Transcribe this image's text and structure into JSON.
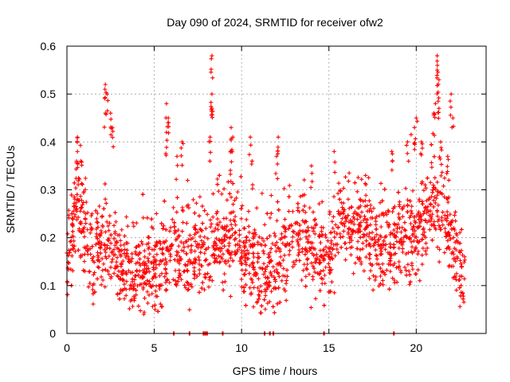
{
  "chart_data": {
    "type": "scatter",
    "title": "Day 090 of 2024, SRMTID for receiver ofw2",
    "xlabel": "GPS time / hours",
    "ylabel": "SRMTID / TECUs",
    "xlim": [
      0,
      24
    ],
    "ylim": [
      0,
      0.6
    ],
    "xticks": [
      0,
      5,
      10,
      15,
      20
    ],
    "xtick_labels": [
      "0",
      "5",
      "10",
      "15",
      "20"
    ],
    "yticks": [
      0,
      0.1,
      0.2,
      0.3,
      0.4,
      0.5,
      0.6
    ],
    "ytick_labels": [
      "0",
      "0.1",
      "0.2",
      "0.3",
      "0.4",
      "0.5",
      "0.6"
    ],
    "grid": true,
    "marker": "+",
    "series": [
      {
        "name": "ofw2",
        "color": "#ff0000",
        "trend": [
          [
            0.0,
            0.17
          ],
          [
            0.3,
            0.2
          ],
          [
            0.6,
            0.28
          ],
          [
            0.9,
            0.22
          ],
          [
            1.2,
            0.18
          ],
          [
            1.6,
            0.17
          ],
          [
            2.0,
            0.17
          ],
          [
            2.3,
            0.2
          ],
          [
            2.6,
            0.17
          ],
          [
            3.0,
            0.14
          ],
          [
            3.5,
            0.14
          ],
          [
            4.0,
            0.13
          ],
          [
            4.5,
            0.13
          ],
          [
            5.0,
            0.13
          ],
          [
            5.5,
            0.15
          ],
          [
            6.0,
            0.19
          ],
          [
            6.5,
            0.17
          ],
          [
            7.0,
            0.16
          ],
          [
            7.5,
            0.17
          ],
          [
            8.0,
            0.16
          ],
          [
            8.5,
            0.22
          ],
          [
            9.0,
            0.19
          ],
          [
            9.5,
            0.23
          ],
          [
            10.0,
            0.16
          ],
          [
            10.5,
            0.16
          ],
          [
            11.0,
            0.12
          ],
          [
            11.5,
            0.13
          ],
          [
            12.0,
            0.15
          ],
          [
            12.5,
            0.18
          ],
          [
            13.0,
            0.2
          ],
          [
            13.5,
            0.2
          ],
          [
            14.0,
            0.19
          ],
          [
            14.5,
            0.15
          ],
          [
            15.0,
            0.16
          ],
          [
            15.5,
            0.24
          ],
          [
            16.0,
            0.23
          ],
          [
            16.5,
            0.22
          ],
          [
            17.0,
            0.23
          ],
          [
            17.5,
            0.18
          ],
          [
            18.0,
            0.18
          ],
          [
            18.5,
            0.17
          ],
          [
            19.0,
            0.2
          ],
          [
            19.5,
            0.19
          ],
          [
            20.0,
            0.21
          ],
          [
            20.5,
            0.23
          ],
          [
            21.0,
            0.28
          ],
          [
            21.5,
            0.24
          ],
          [
            22.0,
            0.2
          ],
          [
            22.5,
            0.14
          ],
          [
            22.8,
            0.1
          ]
        ],
        "spikes": [
          [
            0.6,
            0.41
          ],
          [
            0.6,
            0.38
          ],
          [
            0.8,
            0.36
          ],
          [
            2.2,
            0.52
          ],
          [
            2.3,
            0.5
          ],
          [
            2.2,
            0.46
          ],
          [
            2.5,
            0.46
          ],
          [
            2.6,
            0.43
          ],
          [
            5.7,
            0.48
          ],
          [
            5.8,
            0.45
          ],
          [
            5.7,
            0.42
          ],
          [
            6.3,
            0.37
          ],
          [
            6.6,
            0.4
          ],
          [
            8.3,
            0.58
          ],
          [
            8.3,
            0.5
          ],
          [
            8.3,
            0.47
          ],
          [
            8.2,
            0.41
          ],
          [
            9.4,
            0.43
          ],
          [
            9.5,
            0.41
          ],
          [
            9.4,
            0.38
          ],
          [
            10.5,
            0.41
          ],
          [
            10.6,
            0.36
          ],
          [
            12.1,
            0.41
          ],
          [
            12.0,
            0.37
          ],
          [
            14.0,
            0.35
          ],
          [
            15.3,
            0.38
          ],
          [
            17.1,
            0.33
          ],
          [
            18.6,
            0.38
          ],
          [
            19.5,
            0.4
          ],
          [
            19.9,
            0.43
          ],
          [
            20.0,
            0.45
          ],
          [
            20.3,
            0.4
          ],
          [
            21.0,
            0.46
          ],
          [
            21.2,
            0.58
          ],
          [
            21.2,
            0.55
          ],
          [
            21.3,
            0.53
          ],
          [
            21.1,
            0.48
          ],
          [
            21.3,
            0.47
          ],
          [
            21.4,
            0.4
          ],
          [
            22.0,
            0.5
          ],
          [
            22.1,
            0.45
          ],
          [
            21.8,
            0.37
          ]
        ],
        "zeros": [
          6.1,
          7.0,
          7.8,
          7.9,
          8.0,
          8.9,
          11.3,
          11.6,
          11.8,
          14.7,
          18.7
        ]
      }
    ]
  }
}
